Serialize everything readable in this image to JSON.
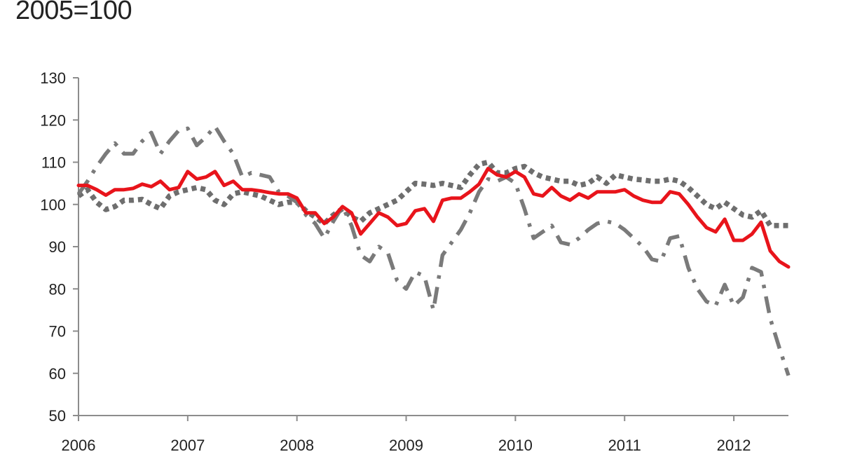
{
  "chart_data": {
    "type": "line",
    "title": "2005=100",
    "xlabel": "",
    "ylabel": "",
    "xlim": [
      2006,
      2012.5
    ],
    "ylim": [
      50,
      130
    ],
    "y_ticks": [
      50,
      60,
      70,
      80,
      90,
      100,
      110,
      120,
      130
    ],
    "x_ticks": [
      2006,
      2007,
      2008,
      2009,
      2010,
      2011,
      2012
    ],
    "x_tick_labels": [
      "2006",
      "2007",
      "2008",
      "2009",
      "2010",
      "2011",
      "2012"
    ],
    "grid": false,
    "legend": "none",
    "series": [
      {
        "style": "solid",
        "color": "#e8141b",
        "points": [
          [
            2006.0,
            104.5
          ],
          [
            2006.083,
            104.5
          ],
          [
            2006.167,
            103.5
          ],
          [
            2006.25,
            102.2
          ],
          [
            2006.333,
            103.5
          ],
          [
            2006.417,
            103.5
          ],
          [
            2006.5,
            103.8
          ],
          [
            2006.583,
            104.8
          ],
          [
            2006.667,
            104.2
          ],
          [
            2006.75,
            105.5
          ],
          [
            2006.833,
            103.5
          ],
          [
            2006.917,
            104
          ],
          [
            2007.0,
            107.8
          ],
          [
            2007.083,
            106
          ],
          [
            2007.167,
            106.5
          ],
          [
            2007.25,
            107.8
          ],
          [
            2007.333,
            104.5
          ],
          [
            2007.417,
            105.5
          ],
          [
            2007.5,
            103.5
          ],
          [
            2007.583,
            103.5
          ],
          [
            2007.667,
            103.2
          ],
          [
            2007.75,
            102.8
          ],
          [
            2007.833,
            102.5
          ],
          [
            2007.917,
            102.5
          ],
          [
            2008.0,
            101.5
          ],
          [
            2008.083,
            98
          ],
          [
            2008.167,
            98
          ],
          [
            2008.25,
            95.5
          ],
          [
            2008.333,
            97
          ],
          [
            2008.417,
            99.5
          ],
          [
            2008.5,
            98
          ],
          [
            2008.583,
            93
          ],
          [
            2008.667,
            95.5
          ],
          [
            2008.75,
            98
          ],
          [
            2008.833,
            97
          ],
          [
            2008.917,
            95
          ],
          [
            2009.0,
            95.5
          ],
          [
            2009.083,
            98.5
          ],
          [
            2009.167,
            99
          ],
          [
            2009.25,
            96
          ],
          [
            2009.333,
            101
          ],
          [
            2009.417,
            101.5
          ],
          [
            2009.5,
            101.5
          ],
          [
            2009.583,
            103
          ],
          [
            2009.667,
            104.8
          ],
          [
            2009.75,
            108.5
          ],
          [
            2009.833,
            107
          ],
          [
            2009.917,
            106.5
          ],
          [
            2010.0,
            107.8
          ],
          [
            2010.083,
            106.5
          ],
          [
            2010.167,
            102.5
          ],
          [
            2010.25,
            102
          ],
          [
            2010.333,
            104
          ],
          [
            2010.417,
            102
          ],
          [
            2010.5,
            101
          ],
          [
            2010.583,
            102.5
          ],
          [
            2010.667,
            101.5
          ],
          [
            2010.75,
            103
          ],
          [
            2010.833,
            103
          ],
          [
            2010.917,
            103
          ],
          [
            2011.0,
            103.5
          ],
          [
            2011.083,
            102
          ],
          [
            2011.167,
            101
          ],
          [
            2011.25,
            100.5
          ],
          [
            2011.333,
            100.5
          ],
          [
            2011.417,
            103
          ],
          [
            2011.5,
            102.5
          ],
          [
            2011.583,
            100
          ],
          [
            2011.667,
            97
          ],
          [
            2011.75,
            94.5
          ],
          [
            2011.833,
            93.5
          ],
          [
            2011.917,
            96.5
          ],
          [
            2012.0,
            91.5
          ],
          [
            2012.083,
            91.5
          ],
          [
            2012.167,
            93
          ],
          [
            2012.25,
            95.8
          ],
          [
            2012.333,
            89
          ],
          [
            2012.417,
            86.5
          ],
          [
            2012.5,
            85.2
          ]
        ]
      },
      {
        "style": "dotted",
        "color": "#6e6e6e",
        "points": [
          [
            2006.0,
            102
          ],
          [
            2006.083,
            103.5
          ],
          [
            2006.167,
            100.5
          ],
          [
            2006.25,
            98.8
          ],
          [
            2006.333,
            99.5
          ],
          [
            2006.417,
            101
          ],
          [
            2006.5,
            101
          ],
          [
            2006.583,
            101.2
          ],
          [
            2006.667,
            100
          ],
          [
            2006.75,
            99
          ],
          [
            2006.833,
            102
          ],
          [
            2006.917,
            103
          ],
          [
            2007.0,
            103.5
          ],
          [
            2007.083,
            104
          ],
          [
            2007.167,
            103.5
          ],
          [
            2007.25,
            101
          ],
          [
            2007.333,
            100
          ],
          [
            2007.417,
            102.5
          ],
          [
            2007.5,
            103
          ],
          [
            2007.583,
            102.5
          ],
          [
            2007.667,
            102
          ],
          [
            2007.75,
            101
          ],
          [
            2007.833,
            100
          ],
          [
            2007.917,
            100.5
          ],
          [
            2008.0,
            100.5
          ],
          [
            2008.083,
            98.5
          ],
          [
            2008.167,
            97
          ],
          [
            2008.25,
            95.5
          ],
          [
            2008.333,
            97.5
          ],
          [
            2008.417,
            99
          ],
          [
            2008.5,
            97
          ],
          [
            2008.583,
            96
          ],
          [
            2008.667,
            98
          ],
          [
            2008.75,
            99
          ],
          [
            2008.833,
            100
          ],
          [
            2008.917,
            101
          ],
          [
            2009.0,
            103
          ],
          [
            2009.083,
            105
          ],
          [
            2009.167,
            104.8
          ],
          [
            2009.25,
            104.5
          ],
          [
            2009.333,
            105
          ],
          [
            2009.417,
            104.5
          ],
          [
            2009.5,
            104
          ],
          [
            2009.583,
            107
          ],
          [
            2009.667,
            109.5
          ],
          [
            2009.75,
            110
          ],
          [
            2009.833,
            107.5
          ],
          [
            2009.917,
            107.5
          ],
          [
            2010.0,
            108.5
          ],
          [
            2010.083,
            109
          ],
          [
            2010.167,
            107.5
          ],
          [
            2010.25,
            106.5
          ],
          [
            2010.333,
            106
          ],
          [
            2010.417,
            105.5
          ],
          [
            2010.5,
            105.5
          ],
          [
            2010.583,
            104.5
          ],
          [
            2010.667,
            105
          ],
          [
            2010.75,
            106.5
          ],
          [
            2010.833,
            105
          ],
          [
            2010.917,
            107
          ],
          [
            2011.0,
            106.5
          ],
          [
            2011.083,
            106
          ],
          [
            2011.167,
            105.8
          ],
          [
            2011.25,
            105.5
          ],
          [
            2011.333,
            105.5
          ],
          [
            2011.417,
            106
          ],
          [
            2011.5,
            105.5
          ],
          [
            2011.583,
            104
          ],
          [
            2011.667,
            102
          ],
          [
            2011.75,
            100
          ],
          [
            2011.833,
            99
          ],
          [
            2011.917,
            100.5
          ],
          [
            2012.0,
            99
          ],
          [
            2012.083,
            97.5
          ],
          [
            2012.167,
            97
          ],
          [
            2012.25,
            98.5
          ],
          [
            2012.333,
            95
          ],
          [
            2012.417,
            95
          ],
          [
            2012.5,
            95
          ]
        ]
      },
      {
        "style": "dash-dot",
        "color": "#7a7a7a",
        "points": [
          [
            2006.0,
            102.5
          ],
          [
            2006.083,
            105.5
          ],
          [
            2006.167,
            109
          ],
          [
            2006.25,
            112
          ],
          [
            2006.333,
            114.5
          ],
          [
            2006.417,
            112
          ],
          [
            2006.5,
            112
          ],
          [
            2006.583,
            115
          ],
          [
            2006.667,
            117
          ],
          [
            2006.75,
            112
          ],
          [
            2006.833,
            115
          ],
          [
            2006.917,
            117.5
          ],
          [
            2007.0,
            118
          ],
          [
            2007.083,
            114
          ],
          [
            2007.167,
            116
          ],
          [
            2007.25,
            118.5
          ],
          [
            2007.333,
            115
          ],
          [
            2007.417,
            112
          ],
          [
            2007.5,
            106.5
          ],
          [
            2007.583,
            107.5
          ],
          [
            2007.667,
            107
          ],
          [
            2007.75,
            106.5
          ],
          [
            2007.833,
            103
          ],
          [
            2007.917,
            102
          ],
          [
            2008.0,
            100.5
          ],
          [
            2008.083,
            97.5
          ],
          [
            2008.167,
            95.5
          ],
          [
            2008.25,
            92
          ],
          [
            2008.333,
            96
          ],
          [
            2008.417,
            99.5
          ],
          [
            2008.5,
            95
          ],
          [
            2008.583,
            88
          ],
          [
            2008.667,
            86.5
          ],
          [
            2008.75,
            90
          ],
          [
            2008.833,
            88.5
          ],
          [
            2008.917,
            82
          ],
          [
            2009.0,
            80
          ],
          [
            2009.083,
            84
          ],
          [
            2009.167,
            83
          ],
          [
            2009.25,
            75
          ],
          [
            2009.333,
            88
          ],
          [
            2009.417,
            91
          ],
          [
            2009.5,
            94
          ],
          [
            2009.583,
            98
          ],
          [
            2009.667,
            103
          ],
          [
            2009.75,
            106
          ],
          [
            2009.833,
            105.5
          ],
          [
            2009.917,
            106.5
          ],
          [
            2010.0,
            105
          ],
          [
            2010.083,
            99
          ],
          [
            2010.167,
            92
          ],
          [
            2010.25,
            93.5
          ],
          [
            2010.333,
            95
          ],
          [
            2010.417,
            91
          ],
          [
            2010.5,
            90.5
          ],
          [
            2010.583,
            92
          ],
          [
            2010.667,
            94
          ],
          [
            2010.75,
            95.5
          ],
          [
            2010.833,
            96
          ],
          [
            2010.917,
            95.5
          ],
          [
            2011.0,
            94
          ],
          [
            2011.083,
            92
          ],
          [
            2011.167,
            90
          ],
          [
            2011.25,
            87
          ],
          [
            2011.333,
            86.5
          ],
          [
            2011.417,
            92
          ],
          [
            2011.5,
            92.5
          ],
          [
            2011.583,
            85
          ],
          [
            2011.667,
            80
          ],
          [
            2011.75,
            77
          ],
          [
            2011.833,
            76
          ],
          [
            2011.917,
            81
          ],
          [
            2012.0,
            76
          ],
          [
            2012.083,
            78
          ],
          [
            2012.167,
            85
          ],
          [
            2012.25,
            84
          ],
          [
            2012.333,
            73
          ],
          [
            2012.417,
            66
          ],
          [
            2012.5,
            59.5
          ]
        ]
      }
    ]
  }
}
